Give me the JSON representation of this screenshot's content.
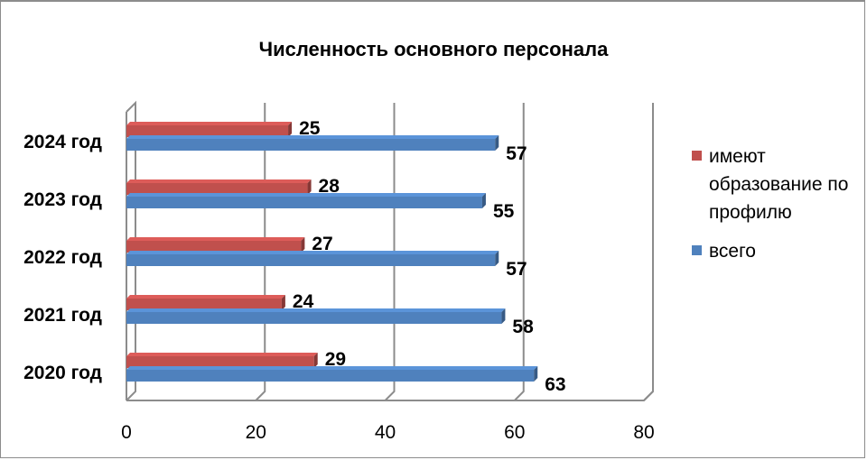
{
  "chart_data": {
    "type": "bar",
    "orientation": "horizontal",
    "style": "3d",
    "title": "Численность основного персонала",
    "categories": [
      "2020 год",
      "2021 год",
      "2022 год",
      "2023 год",
      "2024 год"
    ],
    "series": [
      {
        "name": "всего",
        "color": "#4f81bd",
        "values": [
          63,
          58,
          57,
          55,
          57
        ]
      },
      {
        "name": " имеют образование по профилю",
        "color": "#c0504d",
        "values": [
          29,
          24,
          27,
          28,
          25
        ]
      }
    ],
    "legend_lines": {
      "series_0": [
        "всего"
      ],
      "series_1": [
        " имеют",
        "образование по",
        "профилю"
      ]
    },
    "xlim": [
      0,
      80
    ],
    "xticks": [
      0,
      20,
      40,
      60,
      80
    ],
    "grid": true,
    "legend": "right",
    "data_labels": true
  }
}
